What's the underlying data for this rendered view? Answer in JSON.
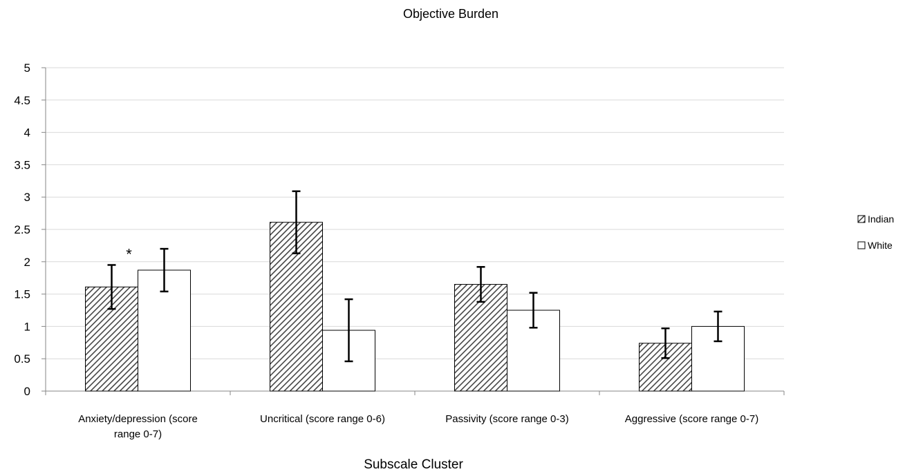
{
  "chart_data": {
    "type": "bar",
    "title": "Objective Burden",
    "xlabel": "Subscale Cluster",
    "ylabel": "",
    "ylim": [
      0,
      5
    ],
    "yticks": [
      "0",
      "0.5",
      "1",
      "1.5",
      "2",
      "2.5",
      "3",
      "3.5",
      "4",
      "4.5",
      "5"
    ],
    "categories": [
      [
        "Anxiety/depression (score",
        "range 0-7)"
      ],
      [
        "Uncritical (score range 0-6)"
      ],
      [
        "Passivity (score range 0-3)"
      ],
      [
        "Aggressive (score range 0-7)"
      ]
    ],
    "series": [
      {
        "name": "Indian",
        "values": [
          1.61,
          2.61,
          1.65,
          0.74
        ],
        "err": [
          0.34,
          0.48,
          0.27,
          0.23
        ],
        "fill": "hatched"
      },
      {
        "name": "White",
        "values": [
          1.87,
          0.94,
          1.25,
          1.0
        ],
        "err": [
          0.33,
          0.48,
          0.27,
          0.23
        ],
        "fill": "#ffffff"
      }
    ],
    "annotations": [
      {
        "text": "*",
        "category": 0,
        "series": 0
      }
    ],
    "grid": true,
    "legend_position": "right"
  },
  "colors": {
    "gridline": "#d9d9d9",
    "axis": "#868686",
    "bar_stroke": "#000000",
    "hatch": "#444444"
  }
}
